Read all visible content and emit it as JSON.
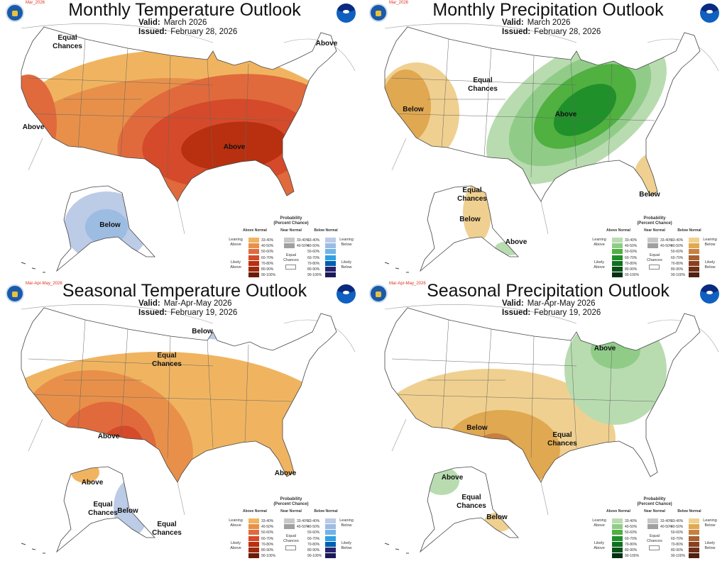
{
  "colors": {
    "temp_above": [
      "#f0b460",
      "#e8904a",
      "#e06a3c",
      "#d44a2a",
      "#b8300f",
      "#9a2a10",
      "#6b1c08"
    ],
    "temp_below": [
      "#bccbe6",
      "#9cbce2",
      "#70b4ea",
      "#30a0e0",
      "#0060b0",
      "#26246e",
      "#1c1a5a"
    ],
    "precip_above": [
      "#b8dcb0",
      "#90cc88",
      "#50b040",
      "#20902a",
      "#107020",
      "#0a5018",
      "#053010"
    ],
    "precip_below": [
      "#f0d090",
      "#e0a850",
      "#c88040",
      "#a86030",
      "#8a4020",
      "#703018",
      "#502010"
    ],
    "near_normal": [
      "#c8c8c8",
      "#a0a0a0"
    ]
  },
  "panels": [
    {
      "kind": "temp",
      "date_tag": "Mar_2026",
      "title": "Monthly Temperature Outlook",
      "valid_label": "Valid:",
      "valid": "March 2026",
      "issued_label": "Issued:",
      "issued": "February 28, 2026",
      "map_labels": [
        "Equal Chances",
        "Above",
        "Above",
        "Above",
        "Below"
      ]
    },
    {
      "kind": "precip",
      "date_tag": "Mar_2026",
      "title": "Monthly Precipitation Outlook",
      "valid_label": "Valid:",
      "valid": "March 2026",
      "issued_label": "Issued:",
      "issued": "February 28, 2026",
      "map_labels": [
        "Equal Chances",
        "Below",
        "Above",
        "Below",
        "Equal Chances",
        "Below",
        "Above"
      ]
    },
    {
      "kind": "temp",
      "date_tag": "Mar-Apr-May_2026",
      "title": "Seasonal Temperature Outlook",
      "valid_label": "Valid:",
      "valid": "Mar-Apr-May 2026",
      "issued_label": "Issued:",
      "issued": "February 19, 2026",
      "map_labels": [
        "Below",
        "Equal Chances",
        "Above",
        "Above",
        "Above",
        "Equal Chances",
        "Below",
        "Equal Chances"
      ]
    },
    {
      "kind": "precip",
      "date_tag": "Mar-Apr-May_2026",
      "title": "Seasonal Precipitation Outlook",
      "valid_label": "Valid:",
      "valid": "Mar-Apr-May 2026",
      "issued_label": "Issued:",
      "issued": "February 19, 2026",
      "map_labels": [
        "Above",
        "Below",
        "Equal Chances",
        "Above",
        "Equal Chances",
        "Below"
      ]
    }
  ],
  "legend": {
    "title": "Probability",
    "subtitle": "(Percent Chance)",
    "above_header": "Above Normal",
    "near_header": "Near Normal",
    "below_header": "Below Normal",
    "ranges": [
      "33-40%",
      "40-50%",
      "50-60%",
      "60-70%",
      "70-80%",
      "80-90%",
      "90-100%"
    ],
    "near_ranges": [
      "33-40%",
      "40-50%"
    ],
    "equal_chances": "Equal Chances",
    "leaning_above": "Leaning Above",
    "likely_above": "Likely Above",
    "leaning_below": "Leaning Below",
    "likely_below": "Likely Below"
  }
}
